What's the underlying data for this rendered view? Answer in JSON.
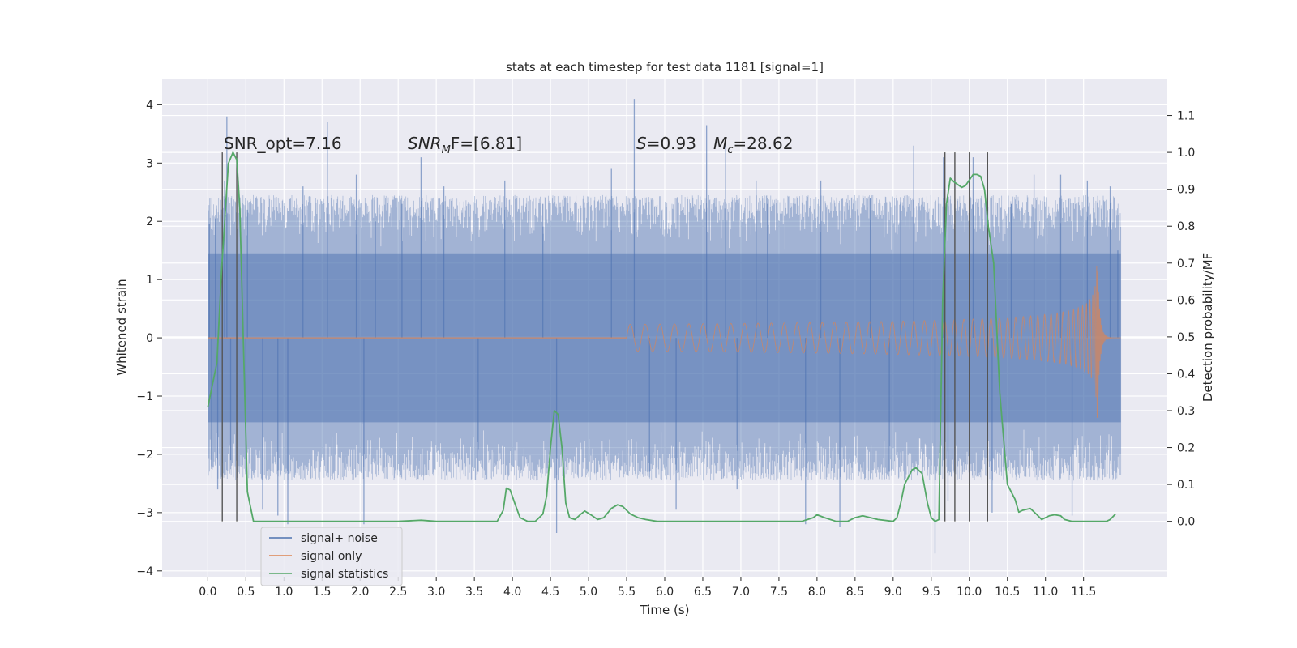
{
  "chart_data": {
    "type": "line",
    "title": "stats at each timestep for test data 1181 [signal=1]",
    "xlabel": "Time (s)",
    "ylabel": "Whitened strain",
    "y2label": "Detection probability/MF",
    "xlim": [
      -0.6,
      12.6
    ],
    "ylim": [
      -4.1,
      4.45
    ],
    "y2lim": [
      -0.15,
      1.2
    ],
    "x_ticks": [
      0.0,
      0.5,
      1.0,
      1.5,
      2.0,
      2.5,
      3.0,
      3.5,
      4.0,
      4.5,
      5.0,
      5.5,
      6.0,
      6.5,
      7.0,
      7.5,
      8.0,
      8.5,
      9.0,
      9.5,
      10.0,
      10.5,
      11.0,
      11.5
    ],
    "x_tick_labels": [
      "0.0",
      "0.5",
      "1.0",
      "1.5",
      "2.0",
      "2.5",
      "3.0",
      "3.5",
      "4.0",
      "4.5",
      "5.0",
      "5.5",
      "6.0",
      "6.5",
      "7.0",
      "7.5",
      "8.0",
      "8.5",
      "9.0",
      "9.5",
      "10.0",
      "10.5",
      "11.0",
      "11.5"
    ],
    "y_ticks": [
      -4,
      -3,
      -2,
      -1,
      0,
      1,
      2,
      3,
      4
    ],
    "y_tick_labels": [
      "−4",
      "−3",
      "−2",
      "−1",
      "0",
      "1",
      "2",
      "3",
      "4"
    ],
    "y2_ticks": [
      0.0,
      0.1,
      0.2,
      0.3,
      0.4,
      0.5,
      0.6,
      0.7,
      0.8,
      0.9,
      1.0,
      1.1
    ],
    "y2_tick_labels": [
      "0.0",
      "0.1",
      "0.2",
      "0.3",
      "0.4",
      "0.5",
      "0.6",
      "0.7",
      "0.8",
      "0.9",
      "1.0",
      "1.1"
    ],
    "grid": true,
    "legend_position": "lower-left",
    "annotations": {
      "snr_opt": "SNR_opt=7.16",
      "snr_mf_prefix": "SNR",
      "snr_mf_sub": "M",
      "snr_mf_suffix": "F=[6.81]",
      "s_prefix": "S",
      "s_suffix": "=0.93",
      "mc_prefix": "M",
      "mc_sub": "c",
      "mc_suffix": "=28.62"
    },
    "series": [
      {
        "name": "signal+ noise",
        "color": "#4c72b0",
        "kind": "noise",
        "x_range": [
          0.0,
          11.99
        ],
        "envelope": 1.45,
        "spikes": [
          {
            "x": 0.02,
            "y": 1.95
          },
          {
            "x": 0.05,
            "y": -2.25
          },
          {
            "x": 0.1,
            "y": 2.05
          },
          {
            "x": 0.13,
            "y": -2.6
          },
          {
            "x": 0.22,
            "y": 2.7
          },
          {
            "x": 0.25,
            "y": 3.8
          },
          {
            "x": 0.3,
            "y": -2.1
          },
          {
            "x": 0.5,
            "y": -2.3
          },
          {
            "x": 0.52,
            "y": 2.2
          },
          {
            "x": 0.72,
            "y": -2.95
          },
          {
            "x": 0.92,
            "y": -3.05
          },
          {
            "x": 1.05,
            "y": -3.2
          },
          {
            "x": 1.25,
            "y": 2.6
          },
          {
            "x": 1.57,
            "y": 3.7
          },
          {
            "x": 1.95,
            "y": 2.8
          },
          {
            "x": 2.05,
            "y": -3.2
          },
          {
            "x": 2.2,
            "y": 2.0
          },
          {
            "x": 2.55,
            "y": 2.3
          },
          {
            "x": 2.8,
            "y": 3.1
          },
          {
            "x": 3.1,
            "y": 2.6
          },
          {
            "x": 3.55,
            "y": -2.3
          },
          {
            "x": 3.9,
            "y": 2.7
          },
          {
            "x": 4.4,
            "y": 2.3
          },
          {
            "x": 4.58,
            "y": -3.35
          },
          {
            "x": 5.3,
            "y": 2.9
          },
          {
            "x": 5.6,
            "y": 4.1
          },
          {
            "x": 5.8,
            "y": -2.3
          },
          {
            "x": 6.15,
            "y": -2.95
          },
          {
            "x": 6.55,
            "y": 3.65
          },
          {
            "x": 6.8,
            "y": 3.35
          },
          {
            "x": 6.95,
            "y": -2.6
          },
          {
            "x": 7.2,
            "y": 2.7
          },
          {
            "x": 7.35,
            "y": 2.3
          },
          {
            "x": 7.85,
            "y": -3.2
          },
          {
            "x": 8.05,
            "y": 2.7
          },
          {
            "x": 8.3,
            "y": -3.25
          },
          {
            "x": 8.7,
            "y": 2.4
          },
          {
            "x": 8.95,
            "y": -2.3
          },
          {
            "x": 9.1,
            "y": 2.3
          },
          {
            "x": 9.27,
            "y": 3.3
          },
          {
            "x": 9.55,
            "y": -3.7
          },
          {
            "x": 9.66,
            "y": 3.1
          },
          {
            "x": 9.72,
            "y": -2.8
          },
          {
            "x": 10.05,
            "y": 3.1
          },
          {
            "x": 10.3,
            "y": -3.0
          },
          {
            "x": 10.55,
            "y": 2.3
          },
          {
            "x": 10.85,
            "y": 2.8
          },
          {
            "x": 11.2,
            "y": 2.8
          },
          {
            "x": 11.35,
            "y": -3.05
          },
          {
            "x": 11.55,
            "y": 2.7
          },
          {
            "x": 11.85,
            "y": 2.6
          },
          {
            "x": 11.95,
            "y": 1.5
          }
        ]
      },
      {
        "name": "signal only",
        "color": "#dd8452",
        "kind": "chirp",
        "x_range": [
          5.5,
          11.99
        ],
        "merger_time": 11.68,
        "peak_amplitude": 1.45
      },
      {
        "name": "signal statistics",
        "color": "#55a868",
        "kind": "line",
        "axis": "right",
        "x": [
          0.0,
          0.12,
          0.18,
          0.27,
          0.33,
          0.38,
          0.42,
          0.48,
          0.52,
          0.55,
          0.6,
          0.7,
          1.0,
          2.0,
          2.5,
          2.8,
          3.0,
          3.5,
          3.8,
          3.88,
          3.92,
          3.97,
          4.03,
          4.1,
          4.2,
          4.3,
          4.4,
          4.45,
          4.5,
          4.55,
          4.6,
          4.65,
          4.7,
          4.75,
          4.82,
          4.9,
          4.95,
          5.05,
          5.12,
          5.2,
          5.3,
          5.38,
          5.45,
          5.55,
          5.6,
          5.65,
          5.75,
          5.9,
          6.1,
          6.3,
          6.6,
          7.0,
          7.3,
          7.8,
          7.95,
          8.0,
          8.1,
          8.25,
          8.4,
          8.5,
          8.6,
          8.8,
          9.0,
          9.05,
          9.1,
          9.15,
          9.25,
          9.3,
          9.38,
          9.45,
          9.5,
          9.55,
          9.6,
          9.65,
          9.7,
          9.75,
          9.8,
          9.9,
          9.95,
          10.0,
          10.05,
          10.1,
          10.15,
          10.2,
          10.25,
          10.32,
          10.4,
          10.5,
          10.6,
          10.65,
          10.7,
          10.8,
          10.88,
          10.95,
          11.0,
          11.05,
          11.12,
          11.2,
          11.25,
          11.35,
          11.5,
          11.8,
          11.85,
          11.92
        ],
        "values": [
          0.31,
          0.43,
          0.68,
          0.97,
          1.0,
          0.98,
          0.85,
          0.38,
          0.08,
          0.05,
          0.0,
          0.0,
          0.0,
          0.0,
          0.0,
          0.003,
          0.0,
          0.0,
          0.0,
          0.03,
          0.09,
          0.085,
          0.05,
          0.01,
          0.0,
          0.0,
          0.02,
          0.07,
          0.2,
          0.3,
          0.29,
          0.2,
          0.05,
          0.01,
          0.005,
          0.02,
          0.028,
          0.015,
          0.005,
          0.01,
          0.035,
          0.045,
          0.04,
          0.02,
          0.015,
          0.01,
          0.005,
          0.0,
          0.0,
          0.0,
          0.0,
          0.0,
          0.0,
          0.0,
          0.01,
          0.018,
          0.01,
          0.0,
          0.0,
          0.01,
          0.015,
          0.005,
          0.0,
          0.01,
          0.05,
          0.1,
          0.14,
          0.145,
          0.13,
          0.05,
          0.01,
          0.0,
          0.005,
          0.6,
          0.86,
          0.93,
          0.92,
          0.905,
          0.91,
          0.925,
          0.94,
          0.94,
          0.935,
          0.9,
          0.8,
          0.7,
          0.35,
          0.1,
          0.06,
          0.025,
          0.03,
          0.035,
          0.02,
          0.005,
          0.01,
          0.015,
          0.018,
          0.015,
          0.005,
          0.0,
          0.0,
          0.0,
          0.005,
          0.02
        ]
      }
    ],
    "vertical_markers": {
      "color": "#555555",
      "axis": "right",
      "y_range": [
        0.0,
        1.0
      ],
      "x": [
        0.19,
        0.38,
        9.68,
        9.81,
        10.0,
        10.24
      ]
    }
  },
  "legend": {
    "items": [
      {
        "label": "signal+ noise",
        "color": "#4c72b0"
      },
      {
        "label": "signal only",
        "color": "#dd8452"
      },
      {
        "label": "signal statistics",
        "color": "#55a868"
      }
    ]
  },
  "theme": {
    "plot_bg": "#eaeaf2",
    "grid_color": "#ffffff"
  }
}
